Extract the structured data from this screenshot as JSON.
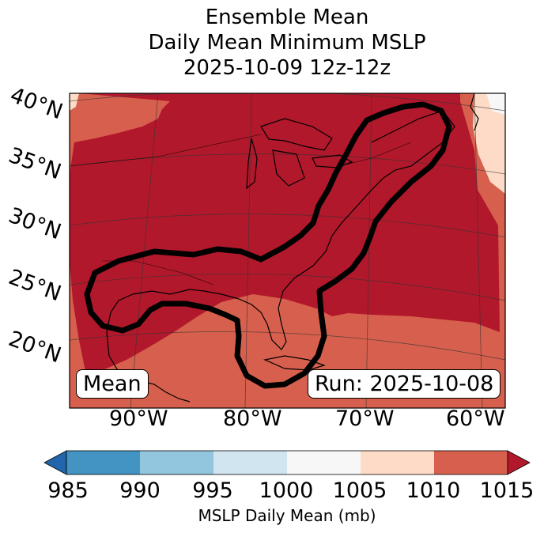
{
  "title": {
    "line1": "Ensemble Mean",
    "line2": "Daily Mean Minimum MSLP",
    "line3": "2025-10-09 12z-12z"
  },
  "lat_labels": [
    "40°N",
    "35°N",
    "30°N",
    "25°N",
    "20°N"
  ],
  "lon_labels": [
    "90°W",
    "80°W",
    "70°W",
    "60°W"
  ],
  "labels": {
    "mean": "Mean",
    "run": "Run: 2025-10-08"
  },
  "colorbar": {
    "ticks": [
      "985",
      "990",
      "995",
      "1000",
      "1005",
      "1010",
      "1015"
    ],
    "label": "MSLP Daily Mean (mb)",
    "colors": [
      "#2166ac",
      "#4393c3",
      "#92c5de",
      "#d1e5f0",
      "#f7f7f7",
      "#fddbc7",
      "#d6604d",
      "#b2182b"
    ]
  },
  "map_colors": {
    "dominant": "#b2182b",
    "outer": "#d6604d",
    "light": "#fddbc7",
    "white": "#f7f7f7"
  }
}
